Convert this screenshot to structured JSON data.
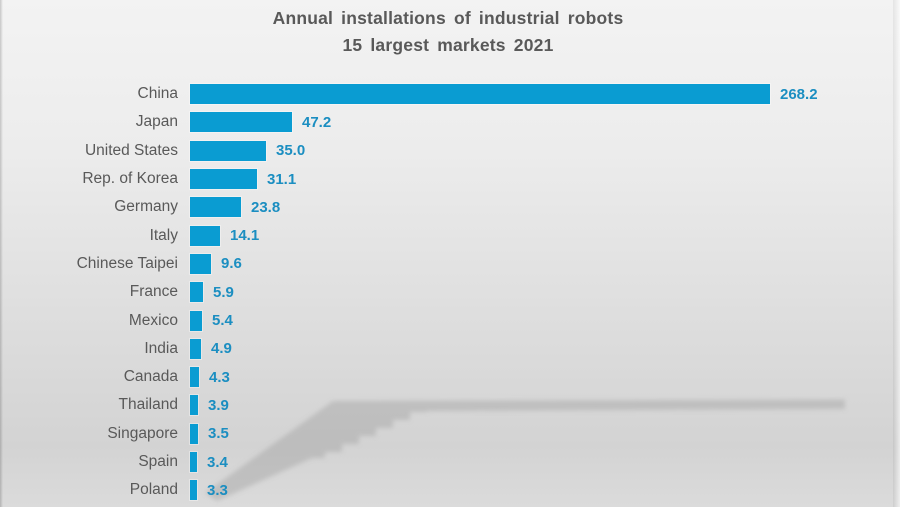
{
  "title": {
    "line1": "Annual installations of industrial robots",
    "line2": "15 largest markets 2021"
  },
  "chart_data": {
    "type": "bar",
    "orientation": "horizontal",
    "title": "Annual installations of industrial robots",
    "subtitle": "15 largest markets 2021",
    "categories": [
      "China",
      "Japan",
      "United States",
      "Rep. of Korea",
      "Germany",
      "Italy",
      "Chinese Taipei",
      "France",
      "Mexico",
      "India",
      "Canada",
      "Thailand",
      "Singapore",
      "Spain",
      "Poland"
    ],
    "values": [
      268.2,
      47.2,
      35.0,
      31.1,
      23.8,
      14.1,
      9.6,
      5.9,
      5.4,
      4.9,
      4.3,
      3.9,
      3.5,
      3.4,
      3.3
    ],
    "value_labels": [
      "268.2",
      "47.2",
      "35.0",
      "31.1",
      "23.8",
      "14.1",
      "9.6",
      "5.9",
      "5.4",
      "4.9",
      "4.3",
      "3.9",
      "3.5",
      "3.4",
      "3.3"
    ],
    "xlim": [
      0,
      280
    ],
    "grid": false,
    "legend": false,
    "value_labels_position": "end-of-bar"
  },
  "colors": {
    "bar": "#0a9cd2",
    "value_label": "#1b8ec1",
    "text": "#595959",
    "background_top": "#f3f3f3",
    "background_bottom": "#d3d3d3"
  }
}
